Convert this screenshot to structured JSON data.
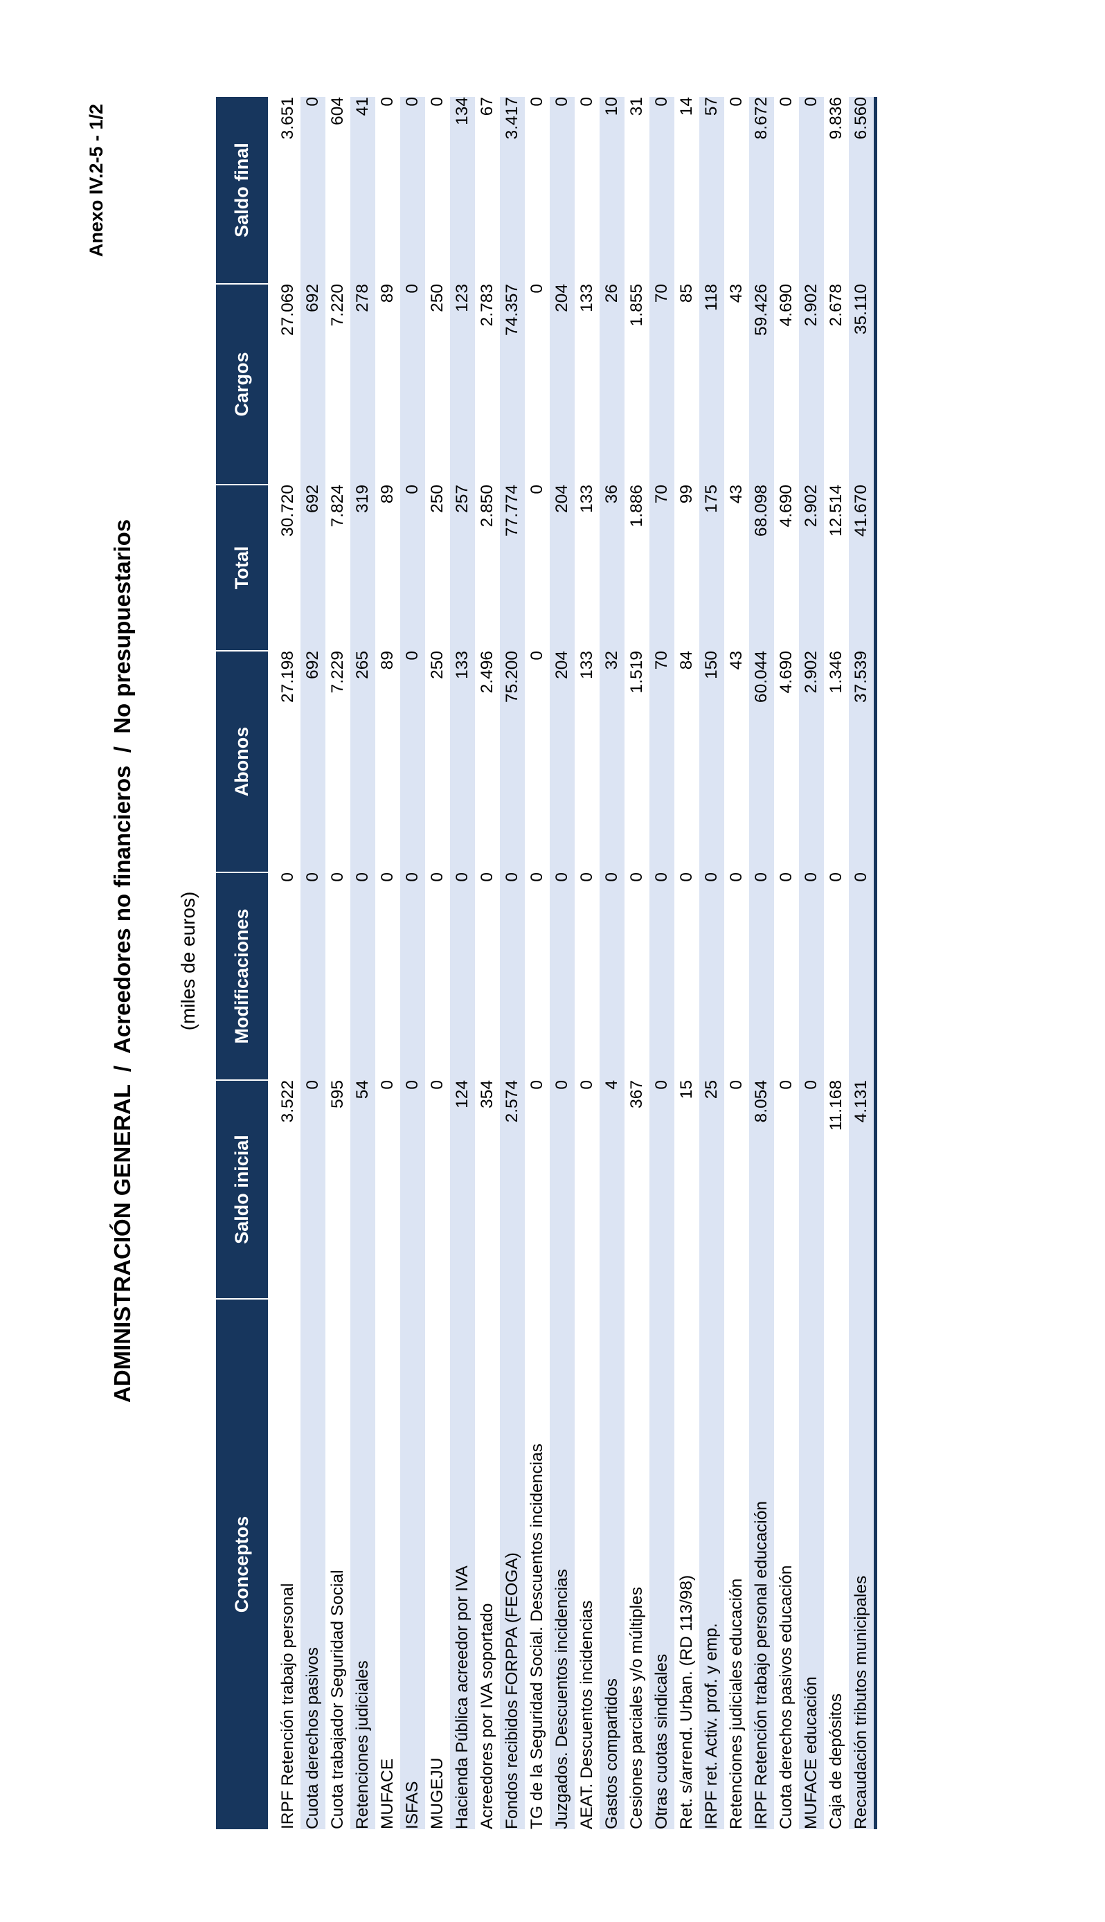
{
  "page": {
    "annex_label": "Anexo IV.2-5 - 1/2",
    "title": "ADMINISTRACIÓN GENERAL  /  Acreedores no financieros  /  No presupuestarios",
    "units_label": "(miles de euros)"
  },
  "colors": {
    "header_bg": "#17365d",
    "header_text": "#ffffff",
    "stripe": "#dce4f3",
    "table_border": "#17365d",
    "body_text": "#000000"
  },
  "table": {
    "columns": [
      "Conceptos",
      "Saldo inicial",
      "Modificaciones",
      "Abonos",
      "Total",
      "Cargos",
      "Saldo final"
    ],
    "rows": [
      [
        "IRPF Retención trabajo personal",
        "3.522",
        "0",
        "27.198",
        "30.720",
        "27.069",
        "3.651"
      ],
      [
        "Cuota derechos pasivos",
        "0",
        "0",
        "692",
        "692",
        "692",
        "0"
      ],
      [
        "Cuota trabajador Seguridad Social",
        "595",
        "0",
        "7.229",
        "7.824",
        "7.220",
        "604"
      ],
      [
        "Retenciones judiciales",
        "54",
        "0",
        "265",
        "319",
        "278",
        "41"
      ],
      [
        "MUFACE",
        "0",
        "0",
        "89",
        "89",
        "89",
        "0"
      ],
      [
        "ISFAS",
        "0",
        "0",
        "0",
        "0",
        "0",
        "0"
      ],
      [
        "MUGEJU",
        "0",
        "0",
        "250",
        "250",
        "250",
        "0"
      ],
      [
        "Hacienda Pública acreedor por IVA",
        "124",
        "0",
        "133",
        "257",
        "123",
        "134"
      ],
      [
        "Acreedores por IVA soportado",
        "354",
        "0",
        "2.496",
        "2.850",
        "2.783",
        "67"
      ],
      [
        "Fondos recibidos FORPPA (FEOGA)",
        "2.574",
        "0",
        "75.200",
        "77.774",
        "74.357",
        "3.417"
      ],
      [
        "TG de la Seguridad Social. Descuentos incidencias",
        "0",
        "0",
        "0",
        "0",
        "0",
        "0"
      ],
      [
        "Juzgados. Descuentos incidencias",
        "0",
        "0",
        "204",
        "204",
        "204",
        "0"
      ],
      [
        "AEAT. Descuentos incidencias",
        "0",
        "0",
        "133",
        "133",
        "133",
        "0"
      ],
      [
        "Gastos compartidos",
        "4",
        "0",
        "32",
        "36",
        "26",
        "10"
      ],
      [
        "Cesiones parciales y/o múltiples",
        "367",
        "0",
        "1.519",
        "1.886",
        "1.855",
        "31"
      ],
      [
        "Otras cuotas sindicales",
        "0",
        "0",
        "70",
        "70",
        "70",
        "0"
      ],
      [
        "Ret. s/arrend. Urban. (RD 113/98)",
        "15",
        "0",
        "84",
        "99",
        "85",
        "14"
      ],
      [
        "IRPF ret. Activ. prof. y emp.",
        "25",
        "0",
        "150",
        "175",
        "118",
        "57"
      ],
      [
        "Retenciones judiciales educación",
        "0",
        "0",
        "43",
        "43",
        "43",
        "0"
      ],
      [
        "IRPF Retención trabajo personal educación",
        "8.054",
        "0",
        "60.044",
        "68.098",
        "59.426",
        "8.672"
      ],
      [
        "Cuota derechos pasivos educación",
        "0",
        "0",
        "4.690",
        "4.690",
        "4.690",
        "0"
      ],
      [
        "MUFACE educación",
        "0",
        "0",
        "2.902",
        "2.902",
        "2.902",
        "0"
      ],
      [
        "Caja de depósitos",
        "11.168",
        "0",
        "1.346",
        "12.514",
        "2.678",
        "9.836"
      ],
      [
        "Recaudación tributos municipales",
        "4.131",
        "0",
        "37.539",
        "41.670",
        "35.110",
        "6.560"
      ]
    ]
  }
}
